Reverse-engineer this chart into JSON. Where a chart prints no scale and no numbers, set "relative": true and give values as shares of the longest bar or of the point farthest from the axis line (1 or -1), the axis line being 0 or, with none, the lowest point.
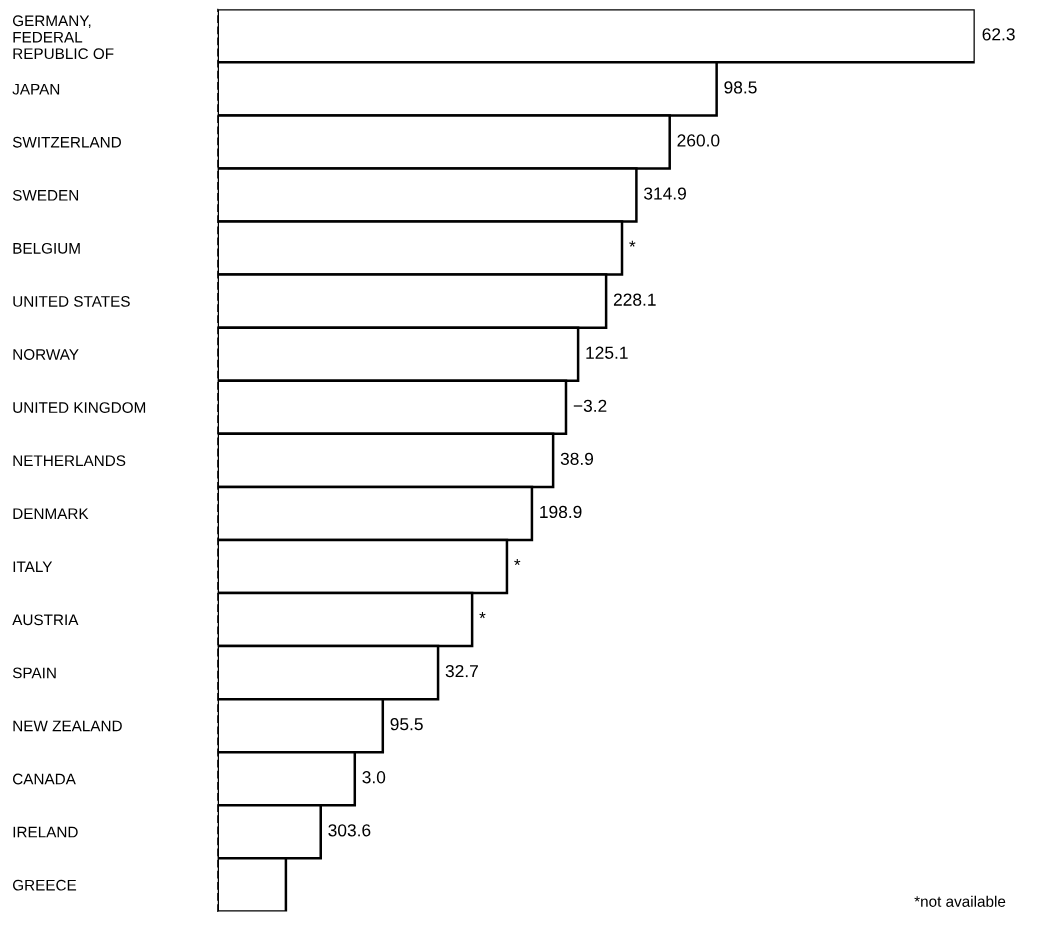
{
  "chart_data": {
    "type": "bar",
    "orientation": "horizontal",
    "relative": true,
    "categories": [
      "GERMANY,\nFEDERAL\nREPUBLIC OF",
      "JAPAN",
      "SWITZERLAND",
      "SWEDEN",
      "BELGIUM",
      "UNITED STATES",
      "NORWAY",
      "UNITED KINGDOM",
      "NETHERLANDS",
      "DENMARK",
      "ITALY",
      "AUSTRIA",
      "SPAIN",
      "NEW ZEALAND",
      "CANADA",
      "IRELAND",
      "GREECE"
    ],
    "values": [
      1.0,
      0.659,
      0.597,
      0.553,
      0.534,
      0.513,
      0.476,
      0.46,
      0.443,
      0.415,
      0.382,
      0.336,
      0.291,
      0.218,
      0.181,
      0.136,
      0.09
    ],
    "color": "#ffffff",
    "annotations": [
      {
        "text": "62.3",
        "x": 1.0,
        "y": "GERMANY,\nFEDERAL\nREPUBLIC OF"
      },
      {
        "text": "98.5",
        "x": 0.659,
        "y": "JAPAN"
      },
      {
        "text": "260.0",
        "x": 0.597,
        "y": "SWITZERLAND"
      },
      {
        "text": "314.9",
        "x": 0.553,
        "y": "SWEDEN"
      },
      {
        "text": "*",
        "x": 0.534,
        "y": "BELGIUM"
      },
      {
        "text": "228.1",
        "x": 0.513,
        "y": "UNITED STATES"
      },
      {
        "text": "125.1",
        "x": 0.476,
        "y": "NORWAY"
      },
      {
        "text": "−3.2",
        "x": 0.46,
        "y": "UNITED KINGDOM"
      },
      {
        "text": "38.9",
        "x": 0.443,
        "y": "NETHERLANDS"
      },
      {
        "text": "198.9",
        "x": 0.415,
        "y": "DENMARK"
      },
      {
        "text": "*",
        "x": 0.382,
        "y": "ITALY"
      },
      {
        "text": "*",
        "x": 0.336,
        "y": "AUSTRIA"
      },
      {
        "text": "32.7",
        "x": 0.291,
        "y": "SPAIN"
      },
      {
        "text": "95.5",
        "x": 0.218,
        "y": "NEW ZEALAND"
      },
      {
        "text": "3.0",
        "x": 0.181,
        "y": "CANADA"
      },
      {
        "text": "303.6",
        "x": 0.136,
        "y": "IRELAND"
      },
      "*not available"
    ]
  }
}
